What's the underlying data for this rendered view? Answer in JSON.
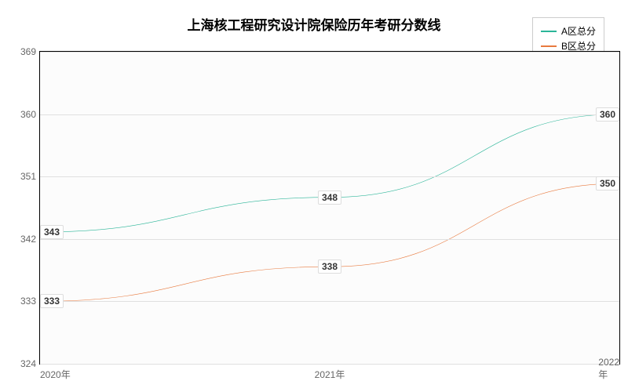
{
  "chart": {
    "type": "line",
    "title": "上海核工程研究设计院保险历年考研分数线",
    "title_fontsize": 17,
    "title_color": "#000000",
    "background_color": "#ffffff",
    "plot_background": "#fcfcfc",
    "grid_color": "#e0e0e0",
    "border_color": "#000000",
    "categories": [
      "2020年",
      "2021年",
      "2022年"
    ],
    "ylim": [
      324,
      369
    ],
    "ytick_step": 9,
    "yticks": [
      324,
      333,
      342,
      351,
      360,
      369
    ],
    "tick_fontsize": 12,
    "tick_color": "#666666",
    "series": [
      {
        "name": "A区总分",
        "color": "#2ab598",
        "values": [
          343,
          348,
          360
        ],
        "line_width": 2
      },
      {
        "name": "B区总分",
        "color": "#e87a3f",
        "values": [
          333,
          338,
          350
        ],
        "line_width": 2
      }
    ],
    "legend": {
      "position": "top-right",
      "border_color": "#cccccc",
      "fontsize": 12
    },
    "data_label": {
      "fontsize": 12,
      "color": "#333333",
      "background": "#ffffff",
      "border_color": "#dddddd"
    }
  }
}
